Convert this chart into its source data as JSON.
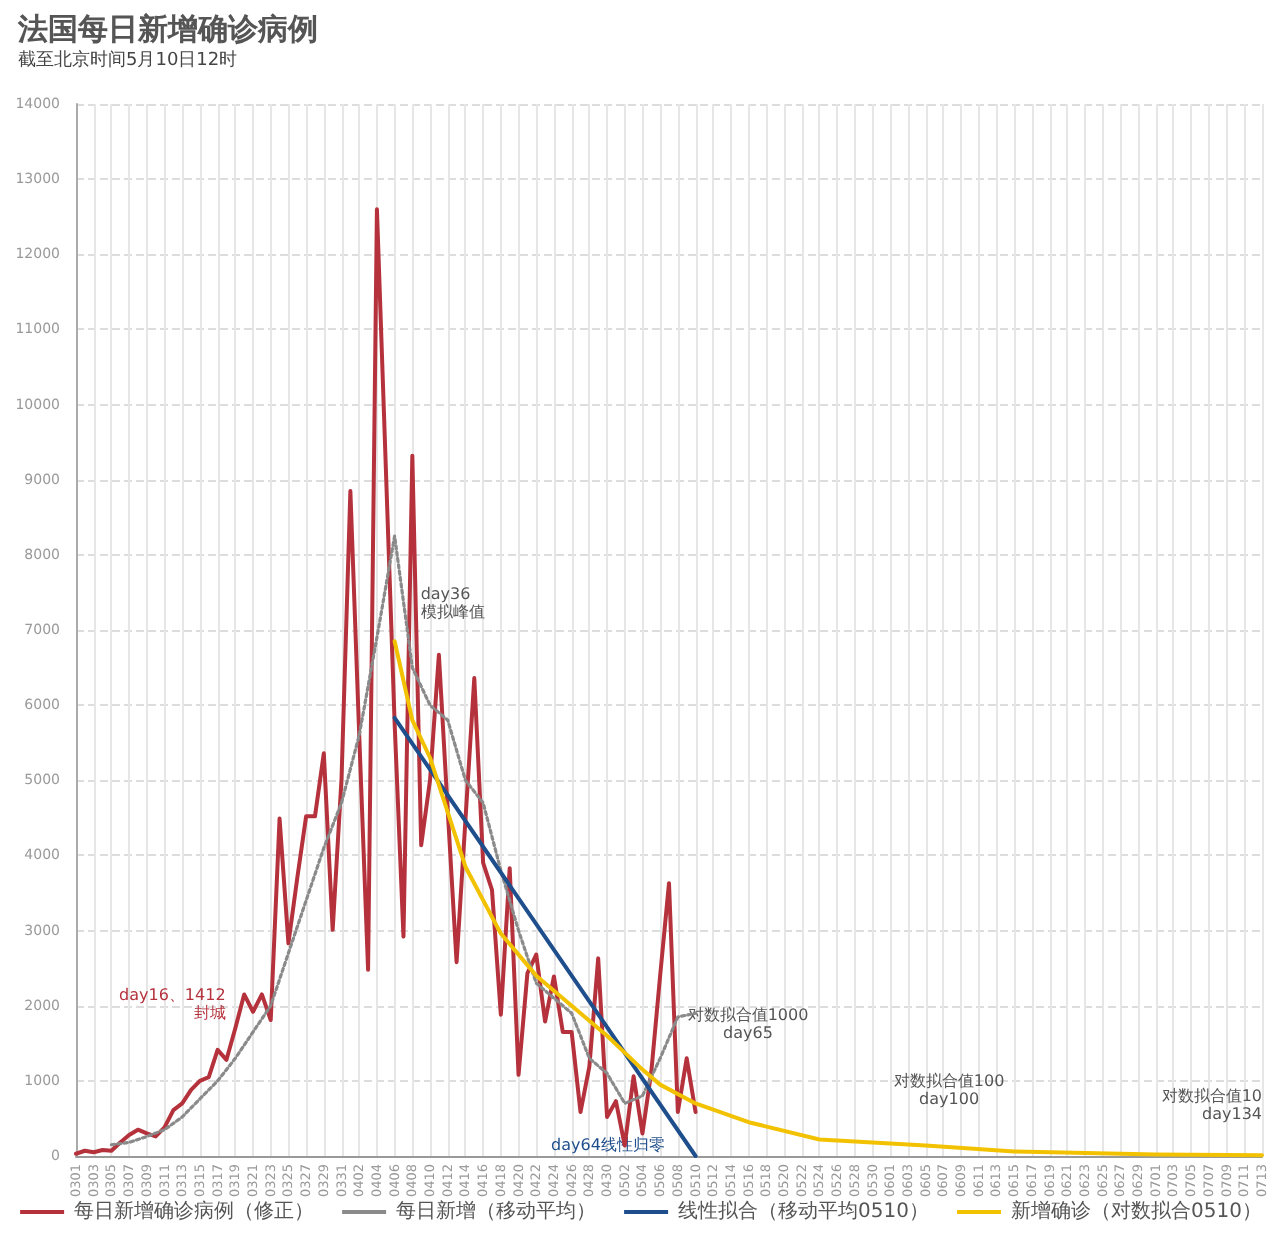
{
  "chart_data": {
    "type": "line",
    "title": "法国每日新增确诊病例",
    "subtitle": "截至北京时间5月10日12时",
    "categories": [
      "0301",
      null,
      "0303",
      null,
      "0305",
      null,
      "0307",
      null,
      "0309",
      null,
      "0311",
      null,
      "0313",
      null,
      "0315",
      null,
      "0317",
      null,
      "0319",
      null,
      "0321",
      null,
      "0323",
      null,
      "0325",
      null,
      "0327",
      null,
      "0329",
      null,
      "0331",
      null,
      "0402",
      null,
      "0404",
      null,
      "0406",
      null,
      "0408",
      null,
      "0410",
      null,
      "0412",
      null,
      "0414",
      null,
      "0416",
      null,
      "0418",
      null,
      "0420",
      null,
      "0422",
      null,
      "0424",
      null,
      "0426",
      null,
      "0428",
      null,
      "0430",
      null,
      "0502",
      null,
      "0504",
      null,
      "0506",
      null,
      "0508",
      null,
      "0510",
      null,
      "0512",
      null,
      "0514",
      null,
      "0516",
      null,
      "0518",
      null,
      "0520",
      null,
      "0522",
      null,
      "0524",
      null,
      "0526",
      null,
      "0528",
      null,
      "0530",
      null,
      "0601",
      null,
      "0603",
      null,
      "0605",
      null,
      "0607",
      null,
      "0609",
      null,
      "0611",
      null,
      "0613",
      null,
      "0615",
      null,
      "0617",
      null,
      "0619",
      null,
      "0621",
      null,
      "0623",
      null,
      "0625",
      null,
      "0627",
      null,
      "0629",
      null,
      "0701",
      null,
      "0703",
      null,
      "0705",
      null,
      "0707",
      null,
      "0709",
      null,
      "0711",
      null,
      "0713"
    ],
    "series": [
      {
        "name": "每日新增确诊病例（修正）",
        "color": "#b5323c",
        "line_style": "solid",
        "values": [
          30,
          70,
          50,
          80,
          70,
          180,
          280,
          350,
          300,
          260,
          380,
          610,
          700,
          880,
          1000,
          1050,
          1412,
          1280,
          1700,
          2150,
          1920,
          2150,
          1810,
          4490,
          2830,
          3700,
          4520,
          4520,
          5360,
          3010,
          5020,
          8850,
          5600,
          2480,
          12600,
          9180,
          5760,
          2920,
          9320,
          4135,
          5000,
          6670,
          4600,
          2580,
          4470,
          6360,
          3900,
          3540,
          1880,
          3830,
          1080,
          2430,
          2680,
          1790,
          2390,
          1650,
          1650,
          585,
          1190,
          2630,
          520,
          730,
          140,
          1060,
          300,
          1120,
          2400,
          3630,
          585,
          1300,
          585,
          null,
          null,
          null,
          null,
          null,
          null,
          null,
          null,
          null,
          null,
          null,
          null,
          null,
          null,
          null,
          null,
          null,
          null,
          null,
          null,
          null,
          null,
          null,
          null,
          null,
          null,
          null,
          null,
          null,
          null,
          null,
          null,
          null,
          null,
          null,
          null,
          null,
          null,
          null,
          null,
          null,
          null,
          null,
          null,
          null,
          null,
          null,
          null,
          null,
          null,
          null,
          null,
          null,
          null,
          null,
          null,
          null,
          null,
          null,
          null,
          null,
          null,
          null,
          null
        ]
      },
      {
        "name": "每日新增（移动平均）",
        "color": "#8a8a8a",
        "line_style": "dotted",
        "values": [
          null,
          null,
          null,
          null,
          150,
          null,
          180,
          null,
          260,
          null,
          350,
          null,
          520,
          null,
          760,
          null,
          1000,
          null,
          1300,
          null,
          1650,
          null,
          2000,
          null,
          2700,
          null,
          3400,
          null,
          4100,
          null,
          4700,
          null,
          5600,
          null,
          6900,
          null,
          8250,
          null,
          6500,
          null,
          6000,
          null,
          5800,
          null,
          5000,
          null,
          4700,
          null,
          3800,
          null,
          3000,
          null,
          2300,
          null,
          2100,
          null,
          1900,
          null,
          1300,
          null,
          1100,
          null,
          700,
          null,
          800,
          null,
          1300,
          null,
          1850,
          null,
          1900,
          null,
          null,
          null,
          null,
          null,
          null,
          null,
          null,
          null,
          null,
          null,
          null,
          null,
          null,
          null,
          null,
          null,
          null,
          null,
          null,
          null,
          null,
          null,
          null,
          null,
          null,
          null,
          null,
          null,
          null,
          null,
          null,
          null,
          null,
          null,
          null,
          null,
          null,
          null,
          null,
          null,
          null,
          null,
          null,
          null,
          null,
          null,
          null,
          null,
          null,
          null,
          null,
          null,
          null,
          null,
          null,
          null,
          null,
          null,
          null,
          null,
          null,
          null,
          null
        ]
      },
      {
        "name": "线性拟合（移动平均0510）",
        "color": "#1f4e8c",
        "line_style": "solid",
        "values": [
          null,
          null,
          null,
          null,
          null,
          null,
          null,
          null,
          null,
          null,
          null,
          null,
          null,
          null,
          null,
          null,
          null,
          null,
          null,
          null,
          null,
          null,
          null,
          null,
          null,
          null,
          null,
          null,
          null,
          null,
          null,
          null,
          null,
          null,
          null,
          null,
          5830,
          null,
          null,
          null,
          null,
          null,
          null,
          null,
          null,
          null,
          null,
          null,
          null,
          null,
          null,
          null,
          null,
          null,
          null,
          null,
          null,
          null,
          null,
          null,
          null,
          null,
          null,
          null,
          null,
          null,
          null,
          null,
          null,
          null,
          0,
          null,
          null,
          null,
          null,
          null,
          null,
          null,
          null,
          null,
          null,
          null,
          null,
          null,
          null,
          null,
          null,
          null,
          null,
          null,
          null,
          null,
          null,
          null,
          null,
          null,
          null,
          null,
          null,
          null,
          null,
          null,
          null,
          null,
          null,
          null,
          null,
          null,
          null,
          null,
          null,
          null,
          null,
          null,
          null,
          null,
          null,
          null,
          null,
          null,
          null,
          null,
          null,
          null,
          null,
          null,
          null,
          null,
          null,
          null,
          null,
          null,
          null,
          null,
          null
        ]
      },
      {
        "name": "新增确诊（对数拟合0510）",
        "color": "#f2c200",
        "line_style": "solid",
        "values": [
          null,
          null,
          null,
          null,
          null,
          null,
          null,
          null,
          null,
          null,
          null,
          null,
          null,
          null,
          null,
          null,
          null,
          null,
          null,
          null,
          null,
          null,
          null,
          null,
          null,
          null,
          null,
          null,
          null,
          null,
          null,
          null,
          null,
          null,
          null,
          null,
          6850,
          null,
          5800,
          null,
          5300,
          null,
          null,
          null,
          3850,
          null,
          null,
          null,
          2960,
          null,
          null,
          null,
          2400,
          null,
          null,
          null,
          2000,
          null,
          null,
          null,
          1600,
          null,
          null,
          null,
          1150,
          null,
          950,
          null,
          null,
          null,
          700,
          null,
          null,
          null,
          null,
          null,
          450,
          null,
          null,
          null,
          null,
          null,
          null,
          null,
          220,
          null,
          null,
          null,
          null,
          null,
          null,
          null,
          null,
          null,
          null,
          null,
          140,
          null,
          null,
          null,
          null,
          null,
          null,
          null,
          null,
          null,
          60,
          null,
          null,
          null,
          null,
          null,
          null,
          null,
          null,
          null,
          null,
          null,
          null,
          null,
          null,
          null,
          20,
          null,
          null,
          null,
          null,
          null,
          null,
          null,
          null,
          null,
          null,
          null,
          10
        ]
      }
    ],
    "ylim": [
      0,
      14000
    ],
    "yticks": [
      0,
      1000,
      2000,
      3000,
      4000,
      5000,
      6000,
      7000,
      8000,
      9000,
      10000,
      11000,
      12000,
      13000,
      14000
    ],
    "grid": true,
    "legend": "bottom",
    "marker": "none",
    "annotations": [
      {
        "text": "day16、1412\n封城",
        "x": "0317",
        "y": 1412
      },
      {
        "text": "day36\n模拟峰值",
        "x": "0406",
        "y": 6850
      },
      "day64线性归零",
      "对数拟合值1000\nday65",
      {
        "text": "对数拟合值100\nday100",
        "x": "0609",
        "y": 100
      },
      {
        "text": "对数拟合值10\nday134",
        "x": "0713",
        "y": 10
      }
    ]
  }
}
